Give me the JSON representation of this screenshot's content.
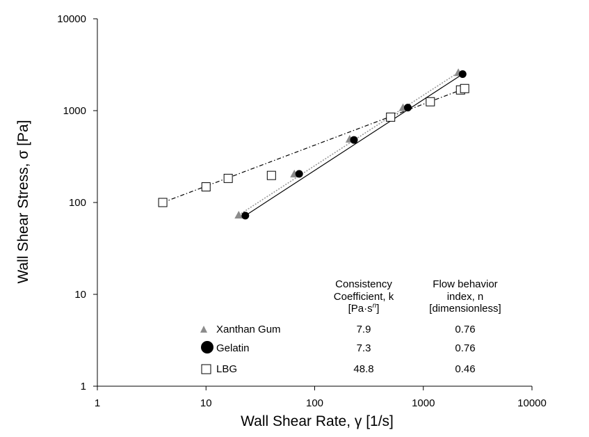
{
  "chart_data": {
    "type": "scatter",
    "x_scale": "log",
    "y_scale": "log",
    "xlim": [
      1,
      10000
    ],
    "ylim": [
      1,
      10000
    ],
    "x_ticks": [
      "1",
      "10",
      "100",
      "1000",
      "10000"
    ],
    "y_ticks": [
      "1",
      "10",
      "100",
      "1000",
      "10000"
    ],
    "xlabel": "Wall Shear Rate, γ [1/s]",
    "ylabel": "Wall Shear Stress, σ [Pa]",
    "grid": false,
    "series": [
      {
        "name": "Xanthan Gum",
        "marker": "triangle",
        "color": "#8c8c8c",
        "line_style": "dotted",
        "points": [
          {
            "x": 20,
            "y": 73
          },
          {
            "x": 65,
            "y": 205
          },
          {
            "x": 210,
            "y": 490
          },
          {
            "x": 650,
            "y": 1080
          },
          {
            "x": 2100,
            "y": 2600
          }
        ]
      },
      {
        "name": "Gelatin",
        "marker": "circle",
        "color": "#000000",
        "line_style": "solid",
        "points": [
          {
            "x": 23,
            "y": 72
          },
          {
            "x": 72,
            "y": 205
          },
          {
            "x": 230,
            "y": 480
          },
          {
            "x": 720,
            "y": 1080
          },
          {
            "x": 2300,
            "y": 2500
          }
        ]
      },
      {
        "name": "LBG",
        "marker": "square",
        "color": "#000000",
        "line_style": "dash-dot",
        "points": [
          {
            "x": 4,
            "y": 100
          },
          {
            "x": 10,
            "y": 148
          },
          {
            "x": 16,
            "y": 183
          },
          {
            "x": 40,
            "y": 197
          },
          {
            "x": 500,
            "y": 850
          },
          {
            "x": 1160,
            "y": 1250
          },
          {
            "x": 2200,
            "y": 1680
          },
          {
            "x": 2400,
            "y": 1740
          }
        ]
      }
    ],
    "fit_lines": [
      {
        "series": "Xanthan Gum",
        "x_range": [
          20,
          2100
        ],
        "y_range": [
          73,
          2600
        ]
      },
      {
        "series": "Gelatin",
        "x_range": [
          23,
          2300
        ],
        "y_range": [
          72,
          2500
        ]
      },
      {
        "series": "LBG",
        "x_range": [
          4,
          2400
        ],
        "y_range": [
          100,
          1740
        ]
      }
    ],
    "table": {
      "header_k": [
        "Consistency",
        "Coefficient, k",
        "[Pa·s",
        "n",
        "]"
      ],
      "header_n": [
        "Flow behavior",
        "index, n",
        "[dimensionless]"
      ],
      "rows": [
        {
          "label": "Xanthan Gum",
          "k": "7.9",
          "n": "0.76"
        },
        {
          "label": "Gelatin",
          "k": "7.3",
          "n": "0.76"
        },
        {
          "label": "LBG",
          "k": "48.8",
          "n": "0.46"
        }
      ]
    }
  }
}
